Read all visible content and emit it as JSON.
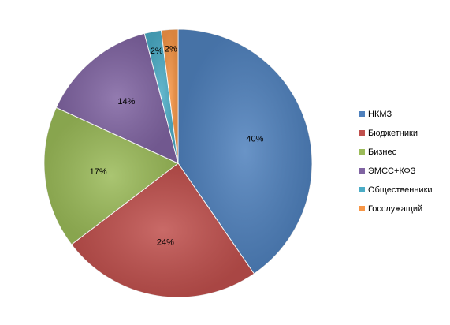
{
  "chart_data": {
    "type": "pie",
    "categories": [
      "НКМЗ",
      "Бюджетники",
      "Бизнес",
      "ЭМСС+КФЗ",
      "Общественники",
      "Госслужащий"
    ],
    "values": [
      40,
      24,
      17,
      14,
      2,
      2
    ],
    "value_labels": [
      "40%",
      "24%",
      "17%",
      "14%",
      "2%",
      "2%"
    ],
    "colors": [
      "#4f81bd",
      "#c0504d",
      "#9bbb59",
      "#8064a2",
      "#4bacc6",
      "#f79646"
    ],
    "legend": "right"
  }
}
